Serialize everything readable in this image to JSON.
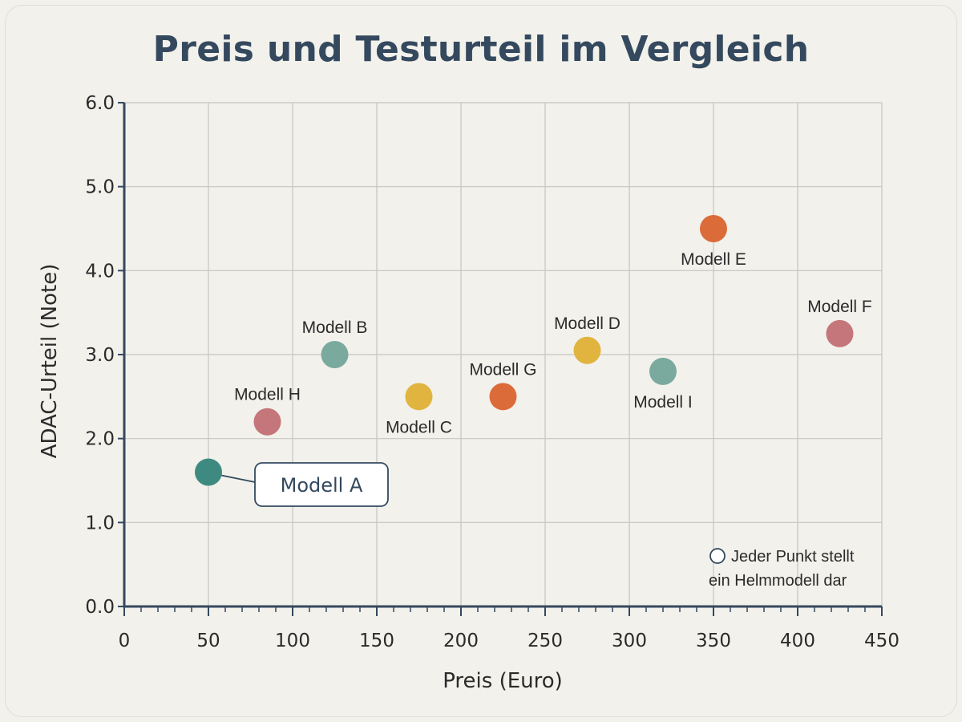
{
  "chart_data": {
    "type": "scatter",
    "title": "Preis und Testurteil im Vergleich",
    "xlabel": "Preis (Euro)",
    "ylabel": "ADAC-Urteil (Note)",
    "xlim": [
      0,
      450
    ],
    "ylim": [
      0,
      6
    ],
    "xticks": [
      0,
      50,
      100,
      150,
      200,
      250,
      300,
      350,
      400,
      450
    ],
    "yticks": [
      0,
      1,
      2,
      3,
      4,
      5,
      6
    ],
    "xtick_labels": [
      "0",
      "50",
      "100",
      "150",
      "200",
      "250",
      "300",
      "350",
      "400",
      "450"
    ],
    "ytick_labels": [
      "0.0",
      "1.0",
      "2.0",
      "3.0",
      "4.0",
      "5.0",
      "6.0"
    ],
    "grid": true,
    "points": [
      {
        "label": "Modell A",
        "x": 50,
        "y": 1.6,
        "color": "#3f8a80",
        "label_pos": "callout"
      },
      {
        "label": "Modell B",
        "x": 125,
        "y": 3.0,
        "color": "#7aaa9e",
        "label_pos": "above"
      },
      {
        "label": "Modell C",
        "x": 175,
        "y": 2.5,
        "color": "#e1b43f",
        "label_pos": "below"
      },
      {
        "label": "Modell D",
        "x": 275,
        "y": 3.05,
        "color": "#e1b43f",
        "label_pos": "above"
      },
      {
        "label": "Modell E",
        "x": 350,
        "y": 4.5,
        "color": "#dc6b3a",
        "label_pos": "below"
      },
      {
        "label": "Modell F",
        "x": 425,
        "y": 3.25,
        "color": "#c4767a",
        "label_pos": "above"
      },
      {
        "label": "Modell G",
        "x": 225,
        "y": 2.5,
        "color": "#dc6b3a",
        "label_pos": "above"
      },
      {
        "label": "Modell H",
        "x": 85,
        "y": 2.2,
        "color": "#c4767a",
        "label_pos": "above"
      },
      {
        "label": "Modell I",
        "x": 320,
        "y": 2.8,
        "color": "#7aaa9e",
        "label_pos": "below"
      }
    ],
    "note": [
      "Jeder Punkt stellt",
      "ein Helmmodell dar"
    ]
  }
}
